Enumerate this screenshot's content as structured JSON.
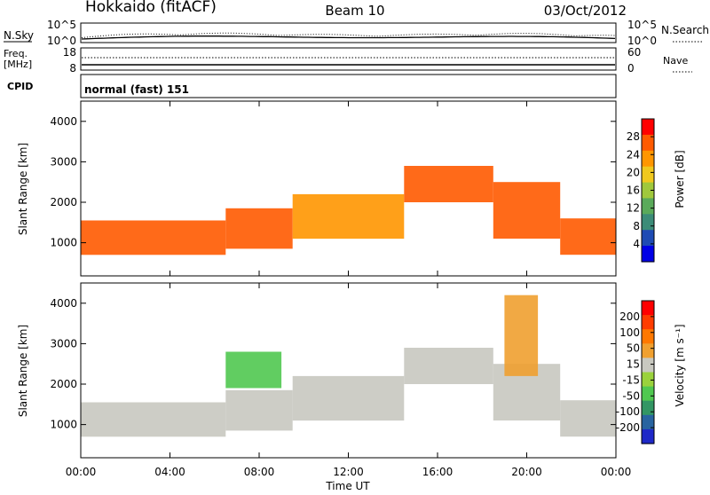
{
  "header": {
    "station": "Hokkaido (fitACF)",
    "beam": "Beam 10",
    "date": "03/Oct/2012"
  },
  "noise_panel": {
    "left_label": "N.Sky",
    "right_label": "N.Search",
    "top_tick": "10^5",
    "bottom_tick": "10^0"
  },
  "freq_panel": {
    "left_label_line1": "Freq.",
    "left_label_line2": "[MHz]",
    "left_top_tick": "18",
    "left_bottom_tick": "8",
    "right_top_tick": "60",
    "right_bottom_tick": "0",
    "right_label": "Nave"
  },
  "cpid_panel": {
    "label": "CPID",
    "text": "normal (fast) 151"
  },
  "colors": {
    "power_scale": [
      "#0000e6",
      "#1e4bb4",
      "#3c8c78",
      "#5aaa5a",
      "#a0c83c",
      "#f0c81e",
      "#ff9600",
      "#ff5a00",
      "#ff0000"
    ],
    "velocity_scale": [
      "#1e28c8",
      "#2864a0",
      "#329664",
      "#50c850",
      "#9ad23c",
      "#c8c8c0",
      "#f0a030",
      "#ff7800",
      "#ff3c00",
      "#ff0000"
    ],
    "fill_gray": "#c8c8c0"
  },
  "chart_data": [
    {
      "type": "heatmap",
      "panel": "power",
      "ylabel": "Slant Range [km]",
      "x_ticks": [
        "00:00",
        "04:00",
        "08:00",
        "12:00",
        "16:00",
        "20:00",
        "00:00"
      ],
      "y_ticks": [
        1000,
        2000,
        3000,
        4000
      ],
      "xlim_hours": [
        0,
        24
      ],
      "ylim_km": [
        180,
        4500
      ],
      "colorbar_label": "Power [dB]",
      "colorbar_ticks": [
        "28",
        "24",
        "20",
        "16",
        "12",
        "8",
        "4"
      ],
      "colorbar_range": [
        0,
        32
      ],
      "bands": [
        {
          "t_start": 0.0,
          "t_end": 6.5,
          "r_low": 700,
          "r_high": 1550,
          "level": 26
        },
        {
          "t_start": 6.5,
          "t_end": 9.5,
          "r_low": 850,
          "r_high": 1850,
          "level": 25
        },
        {
          "t_start": 9.5,
          "t_end": 14.5,
          "r_low": 1100,
          "r_high": 2200,
          "level": 24
        },
        {
          "t_start": 14.5,
          "t_end": 18.5,
          "r_low": 2000,
          "r_high": 2900,
          "level": 26
        },
        {
          "t_start": 18.5,
          "t_end": 21.5,
          "r_low": 1100,
          "r_high": 2500,
          "level": 25
        },
        {
          "t_start": 21.5,
          "t_end": 24.0,
          "r_low": 700,
          "r_high": 1600,
          "level": 26
        }
      ]
    },
    {
      "type": "heatmap",
      "panel": "velocity",
      "ylabel": "Slant Range [km]",
      "xlabel": "Time UT",
      "x_ticks": [
        "00:00",
        "04:00",
        "08:00",
        "12:00",
        "16:00",
        "20:00",
        "00:00"
      ],
      "y_ticks": [
        1000,
        2000,
        3000,
        4000
      ],
      "xlim_hours": [
        0,
        24
      ],
      "ylim_km": [
        180,
        4500
      ],
      "colorbar_label": "Velocity [m s⁻¹]",
      "colorbar_ticks": [
        "200",
        "100",
        "50",
        "15",
        "-15",
        "-50",
        "-100",
        "-200"
      ],
      "colorbar_range": [
        -250,
        250
      ],
      "bands": [
        {
          "t_start": 0.0,
          "t_end": 6.5,
          "r_low": 700,
          "r_high": 1550,
          "level": 0
        },
        {
          "t_start": 6.5,
          "t_end": 9.5,
          "r_low": 850,
          "r_high": 1850,
          "level": 0
        },
        {
          "t_start": 9.5,
          "t_end": 14.5,
          "r_low": 1100,
          "r_high": 2200,
          "level": 0
        },
        {
          "t_start": 14.5,
          "t_end": 18.5,
          "r_low": 2000,
          "r_high": 2900,
          "level": 0
        },
        {
          "t_start": 18.5,
          "t_end": 21.5,
          "r_low": 1100,
          "r_high": 2500,
          "level": 0
        },
        {
          "t_start": 21.5,
          "t_end": 24.0,
          "r_low": 700,
          "r_high": 1600,
          "level": 0
        }
      ],
      "features": [
        {
          "t_start": 19.0,
          "t_end": 20.5,
          "r_low": 2200,
          "r_high": 4200,
          "level": 80
        },
        {
          "t_start": 6.5,
          "t_end": 9.0,
          "r_low": 1900,
          "r_high": 2800,
          "level": -60
        }
      ]
    }
  ]
}
